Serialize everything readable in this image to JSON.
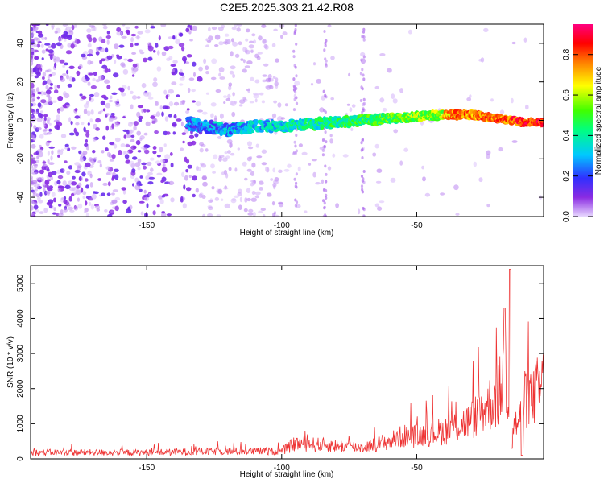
{
  "title": "C2E5.2025.303.21.42.R08",
  "chart_data": [
    {
      "type": "heatmap",
      "title": "C2E5.2025.303.21.42.R08",
      "xlabel": "Height of straight line (km)",
      "ylabel": "Frequency (Hz)",
      "xlim": [
        -193,
        -3
      ],
      "ylim": [
        -50,
        50
      ],
      "xticks": [
        -150,
        -100,
        -50
      ],
      "yticks": [
        -40,
        -20,
        0,
        20,
        40
      ],
      "colorbar": {
        "label": "Normalized spectral amplitude",
        "range": [
          0,
          0.95
        ],
        "ticks": [
          0.0,
          0.2,
          0.4,
          0.6,
          0.8
        ],
        "colormap": "rainbow"
      },
      "ridge": {
        "description_points_x": [
          -133,
          -120,
          -110,
          -100,
          -90,
          -80,
          -70,
          -60,
          -50,
          -40,
          -30,
          -20,
          -10,
          -3
        ],
        "description_points_y": [
          -2,
          -5,
          -3,
          -3,
          -2,
          -1,
          0,
          1,
          2,
          3,
          3,
          1,
          -1,
          -1
        ]
      }
    },
    {
      "type": "line",
      "xlabel": "Height of straight line (km)",
      "ylabel": "SNR (10 * v/v)",
      "xlim": [
        -193,
        -3
      ],
      "ylim": [
        0,
        5500
      ],
      "xticks": [
        -150,
        -100,
        -50
      ],
      "yticks": [
        0,
        1000,
        2000,
        3000,
        4000,
        5000
      ],
      "color": "#ee3333",
      "envelope_x": [
        -193,
        -150,
        -120,
        -100,
        -95,
        -85,
        -70,
        -60,
        -55,
        -50,
        -40,
        -30,
        -25,
        -20,
        -17,
        -15,
        -12,
        -10,
        -5,
        -3
      ],
      "envelope_y": [
        250,
        250,
        300,
        300,
        600,
        550,
        450,
        700,
        900,
        900,
        1100,
        1500,
        2000,
        2400,
        3500,
        1200,
        1500,
        2300,
        2700,
        3000
      ]
    }
  ]
}
